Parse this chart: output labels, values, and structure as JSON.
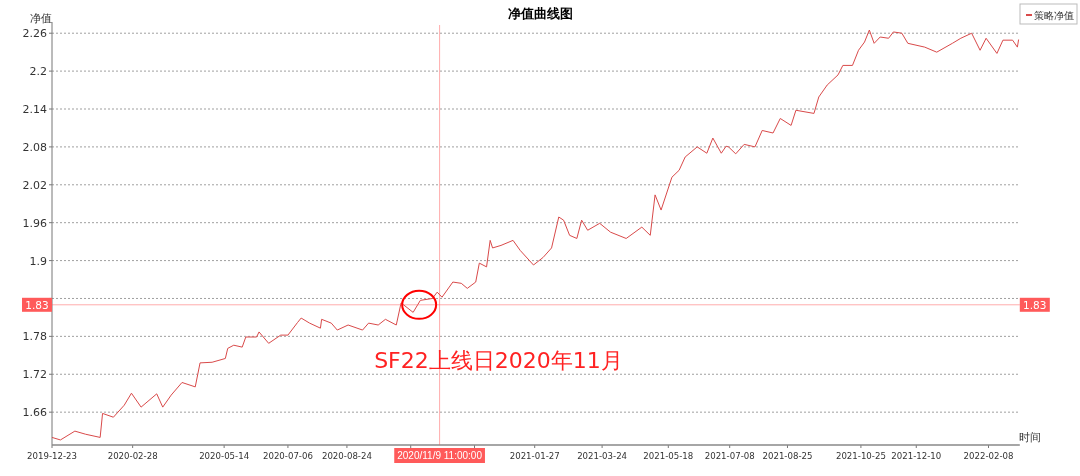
{
  "chart_data": {
    "type": "line",
    "title": "净值曲线图",
    "xlabel": "时间",
    "ylabel": "净值",
    "x": [
      "2019-12-23",
      "2019-12-30",
      "2020-01-11",
      "2020-01-20",
      "2020-02-01",
      "2020-02-03",
      "2020-02-12",
      "2020-02-21",
      "2020-02-27",
      "2020-03-06",
      "2020-03-19",
      "2020-03-24",
      "2020-03-31",
      "2020-04-09",
      "2020-04-20",
      "2020-04-24",
      "2020-05-04",
      "2020-05-15",
      "2020-05-17",
      "2020-05-22",
      "2020-05-29",
      "2020-06-01",
      "2020-06-10",
      "2020-06-12",
      "2020-06-20",
      "2020-06-30",
      "2020-07-06",
      "2020-07-14",
      "2020-07-17",
      "2020-07-24",
      "2020-08-02",
      "2020-08-03",
      "2020-08-11",
      "2020-08-16",
      "2020-08-25",
      "2020-09-06",
      "2020-09-11",
      "2020-09-19",
      "2020-09-25",
      "2020-10-04",
      "2020-10-08",
      "2020-10-18",
      "2020-10-24",
      "2020-11-03",
      "2020-11-07",
      "2020-11-11",
      "2020-11-20",
      "2020-11-27",
      "2020-12-02",
      "2020-12-09",
      "2020-12-12",
      "2020-12-18",
      "2020-12-21",
      "2020-12-23",
      "2020-12-30",
      "2021-01-09",
      "2021-01-15",
      "2021-01-26",
      "2021-02-03",
      "2021-02-10",
      "2021-02-16",
      "2021-02-20",
      "2021-02-25",
      "2021-03-03",
      "2021-03-07",
      "2021-03-12",
      "2021-03-22",
      "2021-03-31",
      "2021-04-13",
      "2021-04-26",
      "2021-05-03",
      "2021-05-07",
      "2021-05-12",
      "2021-05-21",
      "2021-05-27",
      "2021-06-01",
      "2021-06-11",
      "2021-06-19",
      "2021-06-24",
      "2021-07-01",
      "2021-07-05",
      "2021-07-07",
      "2021-07-13",
      "2021-07-20",
      "2021-07-29",
      "2021-08-04",
      "2021-08-13",
      "2021-08-19",
      "2021-08-28",
      "2021-09-01",
      "2021-09-16",
      "2021-09-20",
      "2021-09-27",
      "2021-10-06",
      "2021-10-10",
      "2021-10-18",
      "2021-10-23",
      "2021-10-28",
      "2021-11-01",
      "2021-11-05",
      "2021-11-10",
      "2021-11-17",
      "2021-11-21",
      "2021-11-28",
      "2021-12-03",
      "2021-12-17",
      "2021-12-27",
      "2022-01-09",
      "2022-01-16",
      "2022-01-25",
      "2022-02-01",
      "2022-02-06",
      "2022-02-15",
      "2022-02-20",
      "2022-02-28",
      "2022-03-04",
      "2022-03-05"
    ],
    "series": [
      {
        "name": "策略净值",
        "color": "#d94a4a",
        "values": [
          1.62,
          1.616,
          1.63,
          1.625,
          1.62,
          1.658,
          1.652,
          1.671,
          1.69,
          1.668,
          1.689,
          1.668,
          1.687,
          1.707,
          1.7,
          1.738,
          1.739,
          1.745,
          1.761,
          1.766,
          1.763,
          1.779,
          1.779,
          1.787,
          1.769,
          1.782,
          1.782,
          1.802,
          1.809,
          1.801,
          1.793,
          1.807,
          1.801,
          1.79,
          1.798,
          1.79,
          1.801,
          1.798,
          1.807,
          1.798,
          1.833,
          1.818,
          1.837,
          1.84,
          1.85,
          1.842,
          1.866,
          1.864,
          1.856,
          1.866,
          1.896,
          1.89,
          1.932,
          1.92,
          1.924,
          1.932,
          1.916,
          1.893,
          1.905,
          1.92,
          1.969,
          1.964,
          1.94,
          1.935,
          1.964,
          1.948,
          1.959,
          1.945,
          1.935,
          1.953,
          1.94,
          2.004,
          1.98,
          2.032,
          2.043,
          2.064,
          2.08,
          2.07,
          2.094,
          2.07,
          2.081,
          2.08,
          2.069,
          2.084,
          2.08,
          2.106,
          2.102,
          2.125,
          2.114,
          2.138,
          2.133,
          2.159,
          2.178,
          2.194,
          2.209,
          2.209,
          2.233,
          2.246,
          2.265,
          2.244,
          2.254,
          2.252,
          2.262,
          2.26,
          2.244,
          2.238,
          2.23,
          2.244,
          2.252,
          2.26,
          2.233,
          2.252,
          2.228,
          2.249,
          2.249,
          2.238,
          2.25
        ]
      }
    ],
    "xlim": [
      "2019-12-23",
      "2022-03-06"
    ],
    "xticks": [
      {
        "value": "2019-12-23",
        "label": "2019-12-23"
      },
      {
        "value": "2020-02-28",
        "label": "2020-02-28"
      },
      {
        "value": "2020-05-14",
        "label": "2020-05-14"
      },
      {
        "value": "2020-07-06",
        "label": "2020-07-06"
      },
      {
        "value": "2020-08-24",
        "label": "2020-08-24"
      },
      {
        "value": "2020-10-16",
        "label": null
      },
      {
        "value": "2020-12-08",
        "label": null
      },
      {
        "value": "2021-01-27",
        "label": "2021-01-27"
      },
      {
        "value": "2021-03-24",
        "label": "2021-03-24"
      },
      {
        "value": "2021-05-18",
        "label": "2021-05-18"
      },
      {
        "value": "2021-07-08",
        "label": "2021-07-08"
      },
      {
        "value": "2021-08-25",
        "label": "2021-08-25"
      },
      {
        "value": "2021-10-25",
        "label": "2021-10-25"
      },
      {
        "value": "2021-12-10",
        "label": "2021-12-10"
      },
      {
        "value": "2022-02-08",
        "label": "2022-02-08"
      }
    ],
    "ylim": [
      1.608,
      2.273
    ],
    "yticks": [
      1.66,
      1.72,
      1.78,
      {
        "value": 1.84,
        "label": null
      },
      1.9,
      1.96,
      2.02,
      2.08,
      2.14,
      2.2,
      2.26
    ],
    "grid": "y",
    "legend": "top right",
    "marker": "none",
    "line_style": "solid",
    "ref_lines": [
      {
        "axis": "x",
        "value": "2020-11-09",
        "label": "2020/11/9 11:00:00",
        "color": "#ff5a5a"
      },
      {
        "axis": "y",
        "value": 1.83,
        "label": "1.83",
        "color": "#ff5a5a"
      }
    ],
    "annotations": [
      {
        "text": "SF22上线日2020年11月",
        "x": "2020-10-23",
        "y": 1.83
      }
    ]
  }
}
